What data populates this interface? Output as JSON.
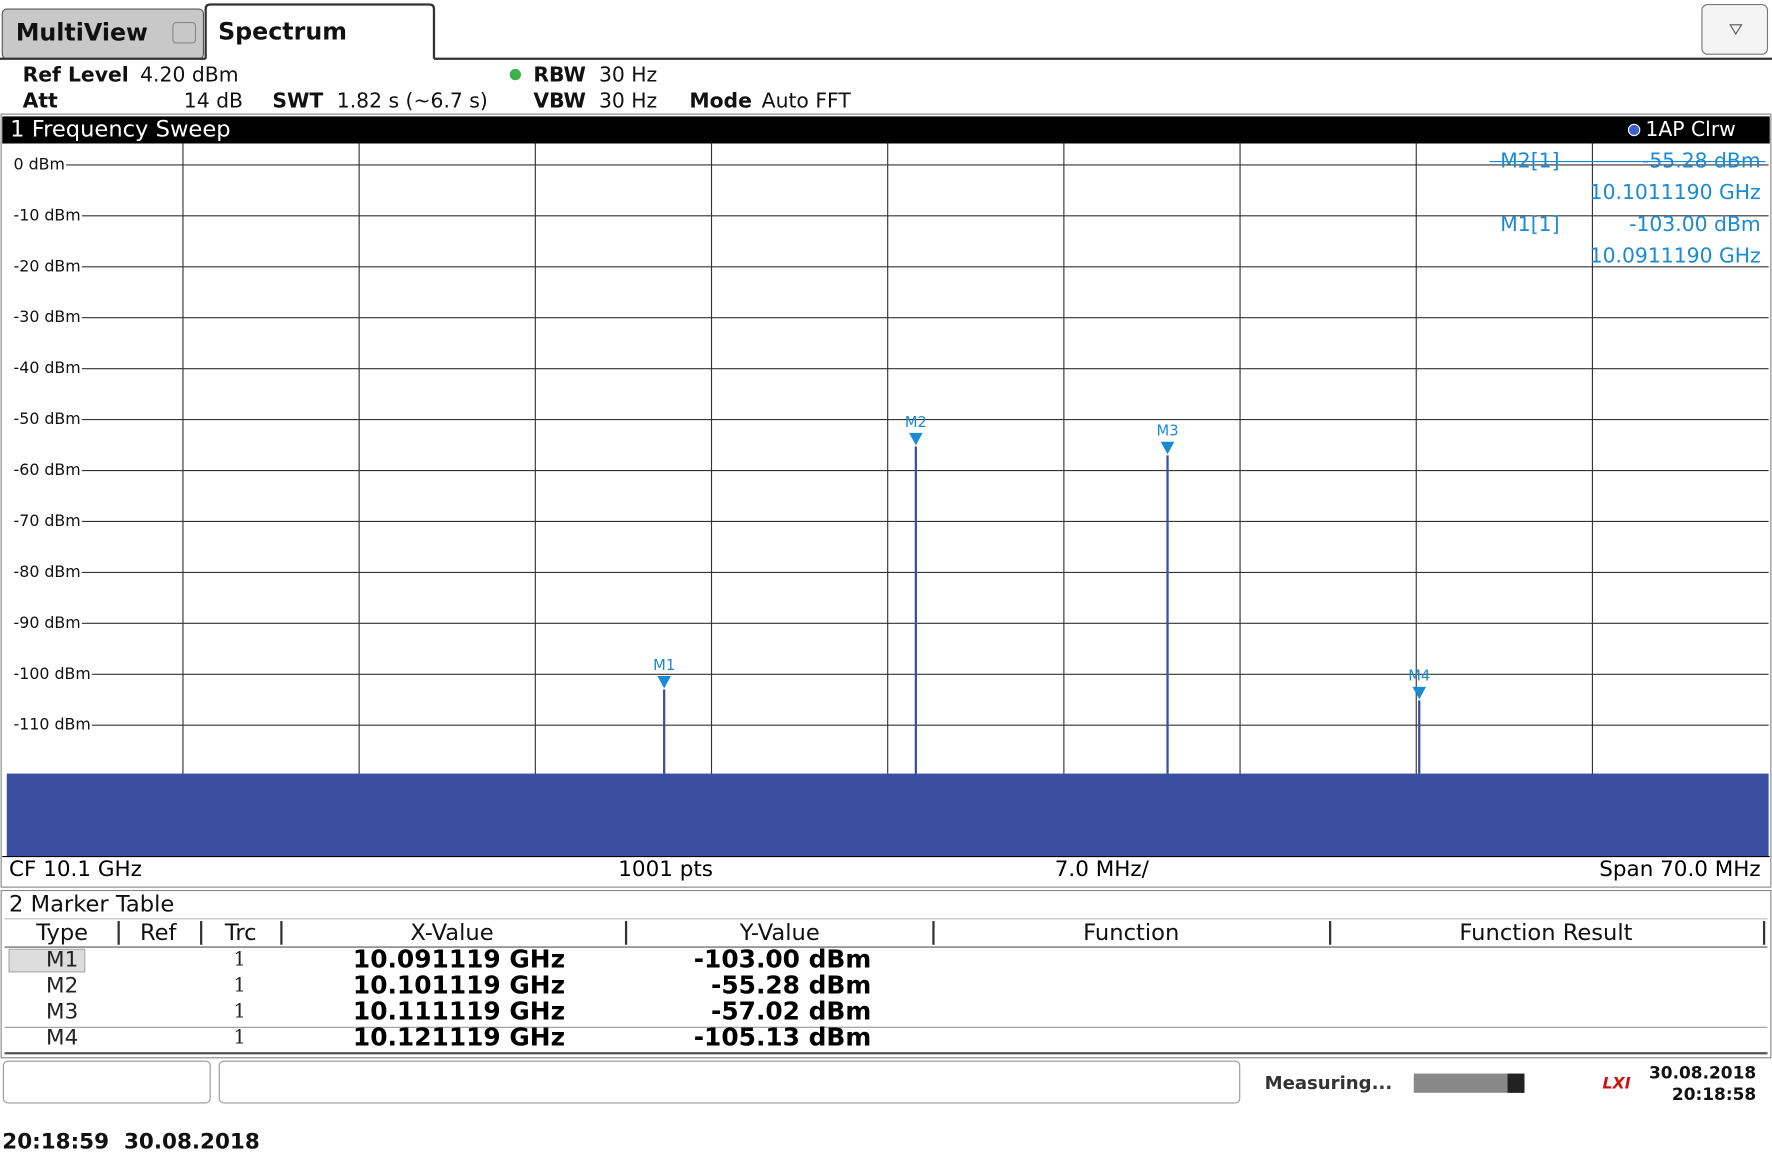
{
  "tabs": [
    "MultiView",
    "Spectrum"
  ],
  "settings": {
    "ref_level_label": "Ref Level",
    "ref_level": "4.20 dBm",
    "att_label": "Att",
    "att": "14 dB",
    "swt_label": "SWT",
    "swt": "1.82 s (~6.7 s)",
    "rbw_label": "RBW",
    "rbw": "30 Hz",
    "vbw_label": "VBW",
    "vbw": "30 Hz",
    "mode_label": "Mode",
    "mode": "Auto FFT"
  },
  "sweep": {
    "title": "1 Frequency Sweep",
    "trace": "1AP Clrw",
    "marker_info": [
      {
        "name": "M2[1]",
        "level": "-55.28 dBm",
        "freq": "10.1011190 GHz"
      },
      {
        "name": "M1[1]",
        "level": "-103.00 dBm",
        "freq": "10.0911190 GHz"
      }
    ],
    "footer": {
      "center": "CF 10.1 GHz",
      "points": "1001 pts",
      "division": "7.0 MHz/",
      "span": "Span 70.0 MHz"
    }
  },
  "chart_data": {
    "type": "spectrum",
    "color": "#3a4fa0",
    "marker_color": "#1a8ad4",
    "grid": true,
    "xlim": [
      10.065,
      10.135
    ],
    "xticks": [
      10.072,
      10.079,
      10.086,
      10.093,
      10.1,
      10.107,
      10.114,
      10.121,
      10.128
    ],
    "ylim": [
      -135.8,
      4.2
    ],
    "yticks": [
      {
        "value": 0,
        "label": "0 dBm"
      },
      {
        "value": -10,
        "label": "-10 dBm"
      },
      {
        "value": -20,
        "label": "-20 dBm"
      },
      {
        "value": -30,
        "label": "-30 dBm"
      },
      {
        "value": -40,
        "label": "-40 dBm"
      },
      {
        "value": -50,
        "label": "-50 dBm"
      },
      {
        "value": -60,
        "label": "-60 dBm"
      },
      {
        "value": -70,
        "label": "-70 dBm"
      },
      {
        "value": -80,
        "label": "-80 dBm"
      },
      {
        "value": -90,
        "label": "-90 dBm"
      },
      {
        "value": -100,
        "label": "-100 dBm"
      },
      {
        "value": -110,
        "label": "-110 dBm"
      }
    ],
    "noise_floor": -119.5,
    "markers": [
      {
        "name": "M1",
        "x": 10.091119,
        "y": -103.0
      },
      {
        "name": "M2",
        "x": 10.101119,
        "y": -55.28
      },
      {
        "name": "M3",
        "x": 10.111119,
        "y": -57.02
      },
      {
        "name": "M4",
        "x": 10.121119,
        "y": -105.13
      }
    ]
  },
  "marker_table": {
    "title": "2 Marker Table",
    "columns": [
      "Type",
      "Ref",
      "Trc",
      "X-Value",
      "Y-Value",
      "Function",
      "Function Result"
    ],
    "rows": [
      {
        "type": "M1",
        "trc": "1",
        "x": "10.091119 GHz",
        "y": "-103.00 dBm"
      },
      {
        "type": "M2",
        "trc": "1",
        "x": "10.101119 GHz",
        "y": "-55.28 dBm"
      },
      {
        "type": "M3",
        "trc": "1",
        "x": "10.111119 GHz",
        "y": "-57.02 dBm"
      },
      {
        "type": "M4",
        "trc": "1",
        "x": "10.121119 GHz",
        "y": "-105.13 dBm"
      }
    ]
  },
  "status": {
    "state": "Measuring...",
    "date": "30.08.2018",
    "time": "20:18:58"
  },
  "timestamp": "20:18:59  30.08.2018"
}
